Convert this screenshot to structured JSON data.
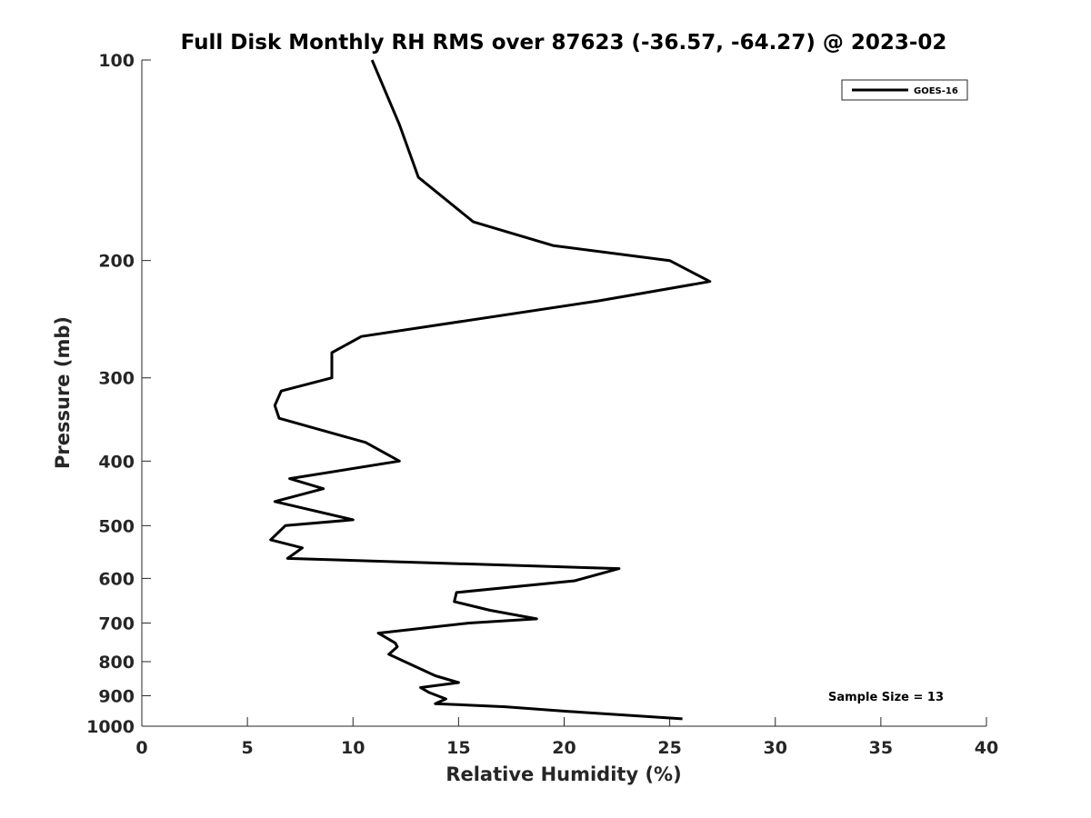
{
  "chart_data": {
    "type": "line",
    "title": "Full Disk Monthly RH RMS over 87623 (-36.57, -64.27) @ 2023-02",
    "xlabel": "Relative Humidity (%)",
    "ylabel": "Pressure (mb)",
    "xlim": [
      0,
      40
    ],
    "ylim": [
      100,
      1000
    ],
    "y_scale": "log",
    "y_reversed": true,
    "x_ticks": [
      "0",
      "5",
      "10",
      "15",
      "20",
      "25",
      "30",
      "35",
      "40"
    ],
    "y_ticks": [
      "100",
      "200",
      "300",
      "400",
      "500",
      "600",
      "700",
      "800",
      "900",
      "1000"
    ],
    "grid": false,
    "legend_position": "top-right",
    "annotation": "Sample Size = 13",
    "series": [
      {
        "name": "GOES-16",
        "color": "#000000",
        "points": [
          [
            10.9,
            100
          ],
          [
            12.2,
            125
          ],
          [
            13.1,
            150
          ],
          [
            15.7,
            175
          ],
          [
            19.5,
            190
          ],
          [
            25.0,
            200
          ],
          [
            26.9,
            215
          ],
          [
            21.6,
            230
          ],
          [
            10.4,
            260
          ],
          [
            9.0,
            275
          ],
          [
            9.0,
            300
          ],
          [
            6.6,
            314
          ],
          [
            6.3,
            330
          ],
          [
            6.5,
            345
          ],
          [
            10.6,
            375
          ],
          [
            12.2,
            400
          ],
          [
            7.0,
            425
          ],
          [
            8.6,
            440
          ],
          [
            6.3,
            460
          ],
          [
            10.0,
            490
          ],
          [
            6.8,
            500
          ],
          [
            6.1,
            525
          ],
          [
            7.6,
            540
          ],
          [
            6.9,
            560
          ],
          [
            22.6,
            580
          ],
          [
            20.5,
            605
          ],
          [
            14.9,
            630
          ],
          [
            14.8,
            650
          ],
          [
            16.5,
            670
          ],
          [
            18.7,
            690
          ],
          [
            15.5,
            700
          ],
          [
            11.2,
            725
          ],
          [
            12.0,
            750
          ],
          [
            12.1,
            760
          ],
          [
            11.7,
            780
          ],
          [
            13.9,
            840
          ],
          [
            15.0,
            860
          ],
          [
            13.2,
            875
          ],
          [
            13.6,
            890
          ],
          [
            14.4,
            910
          ],
          [
            13.9,
            925
          ],
          [
            17.2,
            935
          ],
          [
            20.2,
            950
          ],
          [
            25.6,
            975
          ]
        ]
      }
    ]
  }
}
